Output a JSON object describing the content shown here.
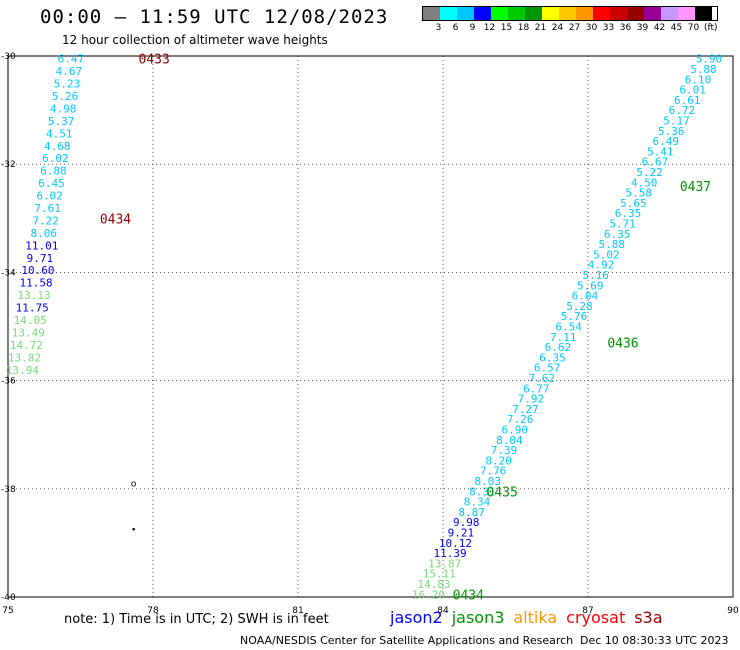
{
  "header": {
    "title": "00:00 — 11:59 UTC 12/08/2023",
    "subtitle": "12 hour collection of altimeter wave heights"
  },
  "legend": {
    "unit": "(ft)",
    "colors": [
      "#808080",
      "#00ffff",
      "#00c8ff",
      "#0000ff",
      "#00ff00",
      "#00c800",
      "#009600",
      "#ffff00",
      "#ffc800",
      "#ff9600",
      "#ff0000",
      "#c80000",
      "#960000",
      "#960096",
      "#c896ff",
      "#ff96ff",
      "#000000"
    ],
    "labels": [
      "3",
      "6",
      "9",
      "12",
      "15",
      "18",
      "21",
      "24",
      "27",
      "30",
      "33",
      "36",
      "39",
      "42",
      "45",
      "70"
    ]
  },
  "footer": {
    "note": "note:  1) Time is in UTC; 2) SWH is in feet",
    "satellites": [
      {
        "name": "jason2",
        "color": "#0000ff"
      },
      {
        "name": "jason3",
        "color": "#009600"
      },
      {
        "name": "altika",
        "color": "#ff9600"
      },
      {
        "name": "cryosat",
        "color": "#ff0000"
      },
      {
        "name": "s3a",
        "color": "#960000"
      }
    ],
    "credit": "NOAA/NESDIS Center for Satellite Applications and Research",
    "timestamp": "Dec 10 08:30:33 UTC 2023"
  },
  "chart_data": {
    "type": "scatter",
    "xlim": [
      75,
      90
    ],
    "ylim": [
      -40,
      -30
    ],
    "x_ticks": [
      "75",
      "78",
      "81",
      "84",
      "87",
      "90"
    ],
    "y_ticks": [
      "-30",
      "-32",
      "-34",
      "-36",
      "-38",
      "-40"
    ],
    "grid": true,
    "track_labels": [
      {
        "text": "0433",
        "x": 77.7,
        "y": -30.05,
        "color": "#960000"
      },
      {
        "text": "0434",
        "x": 76.9,
        "y": -33.0,
        "color": "#960000"
      },
      {
        "text": "0437",
        "x": 88.9,
        "y": -32.4,
        "color": "#009600"
      },
      {
        "text": "0436",
        "x": 87.4,
        "y": -35.3,
        "color": "#009600"
      },
      {
        "text": "0435",
        "x": 84.9,
        "y": -38.05,
        "color": "#009600"
      },
      {
        "text": "0434",
        "x": 84.2,
        "y": -39.95,
        "color": "#009600"
      }
    ],
    "series": [
      {
        "x0": 76.3,
        "y0": -30.05,
        "x1": 75.3,
        "y1": -35.8,
        "values": [
          "6.47",
          "4.67",
          "5.23",
          "5.26",
          "4.98",
          "5.37",
          "4.51",
          "4.68",
          "6.02",
          "6.88",
          "6.45",
          "6.02",
          "7.61",
          "7.22",
          "8.06",
          "11.01",
          "9.71",
          "10.60",
          "11.58",
          "13.13",
          "11.75",
          "14.05",
          "13.49",
          "14.72",
          "13.82",
          "13.94"
        ],
        "colors": [
          "#00c8ff",
          "#00c8ff",
          "#00c8ff",
          "#00c8ff",
          "#00c8ff",
          "#00c8ff",
          "#00c8ff",
          "#00c8ff",
          "#00c8ff",
          "#00c8ff",
          "#00c8ff",
          "#00c8ff",
          "#00c8ff",
          "#00c8ff",
          "#00c8ff",
          "#0000ff",
          "#0000ff",
          "#0000ff",
          "#0000ff",
          "#7bd87b",
          "#0000ff",
          "#7bd87b",
          "#7bd87b",
          "#7bd87b",
          "#7bd87b",
          "#7bd87b"
        ]
      },
      {
        "x0": 89.5,
        "y0": -30.05,
        "x1": 83.7,
        "y1": -39.95,
        "values": [
          "5.90",
          "5.88",
          "6.10",
          "6.01",
          "6.61",
          "6.72",
          "5.17",
          "5.36",
          "6.49",
          "5.41",
          "6.67",
          "5.22",
          "4.50",
          "5.58",
          "5.65",
          "6.35",
          "5.71",
          "6.35",
          "5.88",
          "5.02",
          "4.92",
          "5.16",
          "5.69",
          "6.04",
          "5.28",
          "5.76",
          "6.54",
          "7.11",
          "6.62",
          "6.35",
          "6.57",
          "7.62",
          "6.77",
          "7.92",
          "7.27",
          "7.26",
          "6.90",
          "8.04",
          "7.39",
          "8.20",
          "7.76",
          "8.03",
          "8.31",
          "8.34",
          "8.87",
          "9.98",
          "9.21",
          "10.12",
          "11.39",
          "13.87",
          "15.11",
          "14.83",
          "16.20"
        ],
        "colors": [
          "#00c8ff",
          "#00c8ff",
          "#00c8ff",
          "#00c8ff",
          "#00c8ff",
          "#00c8ff",
          "#00c8ff",
          "#00c8ff",
          "#00c8ff",
          "#00c8ff",
          "#00c8ff",
          "#00c8ff",
          "#00c8ff",
          "#00c8ff",
          "#00c8ff",
          "#00c8ff",
          "#00c8ff",
          "#00c8ff",
          "#00c8ff",
          "#00c8ff",
          "#00c8ff",
          "#00c8ff",
          "#00c8ff",
          "#00c8ff",
          "#00c8ff",
          "#00c8ff",
          "#00c8ff",
          "#00c8ff",
          "#00c8ff",
          "#00c8ff",
          "#00c8ff",
          "#00c8ff",
          "#00c8ff",
          "#00c8ff",
          "#00c8ff",
          "#00c8ff",
          "#00c8ff",
          "#00c8ff",
          "#00c8ff",
          "#00c8ff",
          "#00c8ff",
          "#00c8ff",
          "#00c8ff",
          "#00c8ff",
          "#00c8ff",
          "#0000ff",
          "#0000ff",
          "#0000ff",
          "#0000ff",
          "#7bd87b",
          "#7bd87b",
          "#7bd87b",
          "#7bd87b"
        ]
      }
    ],
    "markers": [
      {
        "symbol": "o",
        "x": 77.6,
        "y": -37.9
      },
      {
        "symbol": "•",
        "x": 77.6,
        "y": -38.75
      }
    ]
  }
}
